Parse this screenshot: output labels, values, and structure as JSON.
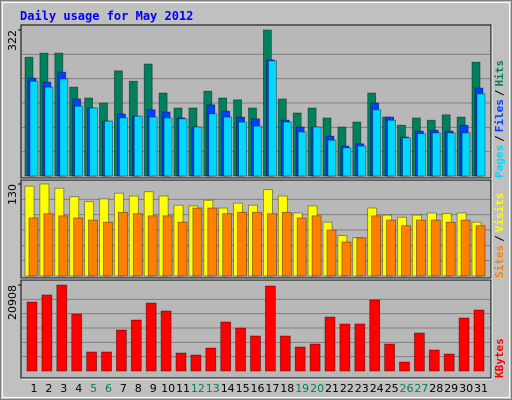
{
  "title": "Daily usage for May 2012",
  "categories": [
    "1",
    "2",
    "3",
    "4",
    "5",
    "6",
    "7",
    "8",
    "9",
    "10",
    "11",
    "12",
    "13",
    "14",
    "15",
    "16",
    "17",
    "18",
    "19",
    "20",
    "21",
    "22",
    "23",
    "24",
    "25",
    "26",
    "27",
    "28",
    "29",
    "30",
    "31"
  ],
  "category_colors": [
    "#000000",
    "#000000",
    "#000000",
    "#000000",
    "#008060",
    "#008060",
    "#000000",
    "#000000",
    "#000000",
    "#000000",
    "#000000",
    "#008060",
    "#008060",
    "#000000",
    "#000000",
    "#000000",
    "#000000",
    "#000000",
    "#008060",
    "#008060",
    "#000000",
    "#000000",
    "#000000",
    "#000000",
    "#000000",
    "#008060",
    "#008060",
    "#000000",
    "#000000",
    "#000000",
    "#000000"
  ],
  "legend_separator": "/",
  "chart_data": [
    {
      "type": "bar",
      "ylim": [
        0,
        322
      ],
      "yticks": [
        322
      ],
      "series": [
        {
          "name": "Hits",
          "color": "#00805c",
          "values": [
            262,
            271,
            271,
            196,
            172,
            161,
            232,
            209,
            247,
            183,
            150,
            150,
            187,
            172,
            168,
            150,
            322,
            170,
            139,
            150,
            128,
            108,
            119,
            183,
            130,
            112,
            128,
            123,
            135,
            130,
            251
          ]
        },
        {
          "name": "Files",
          "color": "#0040ff",
          "values": [
            216,
            207,
            229,
            170,
            150,
            121,
            137,
            132,
            146,
            141,
            128,
            108,
            157,
            143,
            130,
            126,
            256,
            123,
            108,
            108,
            88,
            66,
            71,
            161,
            130,
            86,
            99,
            101,
            99,
            112,
            194
          ]
        },
        {
          "name": "Pages",
          "color": "#00d8ff",
          "values": [
            209,
            196,
            214,
            154,
            150,
            121,
            128,
            132,
            130,
            128,
            126,
            108,
            137,
            130,
            119,
            110,
            254,
            119,
            97,
            108,
            79,
            62,
            66,
            146,
            123,
            84,
            93,
            95,
            95,
            95,
            181
          ]
        }
      ]
    },
    {
      "type": "bar",
      "ylim": [
        0,
        130
      ],
      "yticks": [
        130
      ],
      "series": [
        {
          "name": "Visits",
          "color": "#ffff00",
          "values": [
            127,
            130,
            124,
            112,
            105,
            109,
            117,
            113,
            119,
            113,
            100,
            99,
            107,
            96,
            103,
            100,
            122,
            113,
            89,
            99,
            76,
            57,
            54,
            96,
            86,
            83,
            86,
            89,
            88,
            89,
            76
          ]
        },
        {
          "name": "Sites",
          "color": "#ff8000",
          "values": [
            82,
            88,
            85,
            82,
            79,
            76,
            90,
            88,
            85,
            85,
            76,
            96,
            96,
            88,
            90,
            90,
            88,
            90,
            82,
            85,
            65,
            48,
            54,
            85,
            79,
            71,
            79,
            79,
            76,
            79,
            71
          ]
        }
      ]
    },
    {
      "type": "bar",
      "ylim": [
        0,
        20908
      ],
      "yticks": [
        20908
      ],
      "series": [
        {
          "name": "KBytes",
          "color": "#ff0000",
          "values": [
            16774,
            18476,
            20908,
            13857,
            4619,
            4619,
            9967,
            12398,
            16531,
            14586,
            4376,
            3890,
            5591,
            11912,
            10453,
            8509,
            20664,
            8509,
            5834,
            6564,
            13127,
            11426,
            11426,
            17260,
            6564,
            2188,
            9238,
            5105,
            4133,
            12884,
            14829
          ]
        }
      ]
    }
  ]
}
